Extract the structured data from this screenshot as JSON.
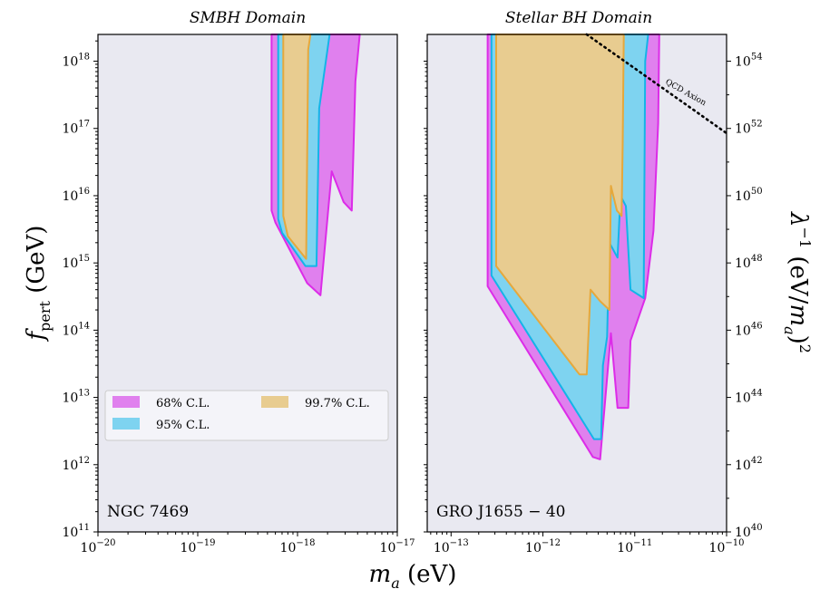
{
  "chart_data": [
    {
      "type": "area",
      "title": "SMBH Domain",
      "xlabel": "m_a (eV)",
      "ylabel": "f_pert (GeV)",
      "xscale": "log",
      "yscale": "log",
      "xlim": [
        1e-20,
        1e-17
      ],
      "ylim": [
        100000000000.0,
        2.5e+18
      ],
      "x_ticks": [
        "10^-20",
        "10^-19",
        "10^-18",
        "10^-17"
      ],
      "y_ticks": [
        "10^11",
        "10^12",
        "10^13",
        "10^14",
        "10^15",
        "10^16",
        "10^17",
        "10^18"
      ],
      "source_label": "NGC 7469",
      "legend": {
        "position": "lower-left",
        "entries": [
          "68% C.L.",
          "95% C.L.",
          "99.7% C.L."
        ]
      },
      "series": [
        {
          "name": "68% C.L.",
          "color": "#e080ee",
          "edge": "#dc2ce8",
          "polygon": [
            [
              5.5e-19,
              2.5e+18
            ],
            [
              4.2e-18,
              2.5e+18
            ],
            [
              3.8e-18,
              5e+17
            ],
            [
              3.5e-18,
              6000000000000000.0
            ],
            [
              2.9e-18,
              8000000000000000.0
            ],
            [
              2.2e-18,
              2.3e+16
            ],
            [
              1.7e-18,
              330000000000000.0
            ],
            [
              1.25e-18,
              500000000000000.0
            ],
            [
              6e-19,
              4000000000000000.0
            ],
            [
              5.5e-19,
              6000000000000000.0
            ]
          ]
        },
        {
          "name": "95% C.L.",
          "color": "#7ed3f0",
          "edge": "#14b4e8",
          "polygon": [
            [
              6.4e-19,
              2.5e+18
            ],
            [
              2.1e-18,
              2.5e+18
            ],
            [
              1.65e-18,
              2e+17
            ],
            [
              1.55e-18,
              900000000000000.0
            ],
            [
              1.2e-18,
              900000000000000.0
            ],
            [
              7e-19,
              2800000000000000.0
            ],
            [
              6.4e-19,
              4500000000000000.0
            ]
          ]
        },
        {
          "name": "99.7% C.L.",
          "color": "#e8cc90",
          "edge": "#e6a83c",
          "polygon": [
            [
              7.2e-19,
              2.5e+18
            ],
            [
              1.35e-18,
              2.5e+18
            ],
            [
              1.28e-18,
              1.5e+18
            ],
            [
              1.22e-18,
              1150000000000000.0
            ],
            [
              8e-19,
              2500000000000000.0
            ],
            [
              7.2e-19,
              5000000000000000.0
            ]
          ]
        }
      ]
    },
    {
      "type": "area",
      "title": "Stellar BH Domain",
      "xlabel": "m_a (eV)",
      "ylabel_right": "λ^-1 (eV/m_a)^2",
      "xscale": "log",
      "yscale": "log",
      "xlim": [
        5.5e-14,
        1e-10
      ],
      "ylim": [
        100000000000.0,
        2.5e+18
      ],
      "x_ticks": [
        "10^-13",
        "10^-12",
        "10^-11",
        "10^-10"
      ],
      "right_ticks": [
        "10^40",
        "10^42",
        "10^44",
        "10^46",
        "10^48",
        "10^50",
        "10^52",
        "10^54"
      ],
      "source_label": "GRO J1655 − 40",
      "annotation": "QCD Axion",
      "qcd_axion_line": {
        "style": "dotted",
        "points": [
          [
            3e-12,
            2.5e+18
          ],
          [
            1e-10,
            8.5e+16
          ]
        ]
      },
      "series": [
        {
          "name": "68% C.L.",
          "color": "#e080ee",
          "edge": "#dc2ce8",
          "polygon": [
            [
              2.5e-13,
              2.5e+18
            ],
            [
              1.85e-11,
              2.5e+18
            ],
            [
              1.8e-11,
              1.2e+17
            ],
            [
              1.6e-11,
              3000000000000000.0
            ],
            [
              1.3e-11,
              300000000000000.0
            ],
            [
              9e-12,
              70000000000000.0
            ],
            [
              8.5e-12,
              7000000000000.0
            ],
            [
              6.5e-12,
              7000000000000.0
            ],
            [
              5.5e-12,
              90000000000000.0
            ],
            [
              4.2e-12,
              1200000000000.0
            ],
            [
              3.5e-12,
              1300000000000.0
            ],
            [
              2.5e-13,
              450000000000000.0
            ]
          ]
        },
        {
          "name": "95% C.L.",
          "color": "#7ed3f0",
          "edge": "#14b4e8",
          "polygon": [
            [
              2.75e-13,
              2.5e+18
            ],
            [
              1.4e-11,
              2.5e+18
            ],
            [
              1.3e-11,
              1e+18
            ],
            [
              1.25e-11,
              300000000000000.0
            ],
            [
              9e-12,
              400000000000000.0
            ],
            [
              8e-12,
              7000000000000000.0
            ],
            [
              7e-12,
              1e+16
            ],
            [
              6.5e-12,
              1200000000000000.0
            ],
            [
              5.3e-12,
              2000000000000000.0
            ],
            [
              5e-12,
              80000000000000.0
            ],
            [
              4.5e-12,
              30000000000000.0
            ],
            [
              4.3e-12,
              2400000000000.0
            ],
            [
              3.6e-12,
              2400000000000.0
            ],
            [
              2.75e-13,
              650000000000000.0
            ]
          ]
        },
        {
          "name": "99.7% C.L.",
          "color": "#e8cc90",
          "edge": "#e6a83c",
          "polygon": [
            [
              3.1e-13,
              2.5e+18
            ],
            [
              7.6e-12,
              2.5e+18
            ],
            [
              7.4e-12,
              6e+16
            ],
            [
              7.2e-12,
              5000000000000000.0
            ],
            [
              6.4e-12,
              6000000000000000.0
            ],
            [
              5.5e-12,
              1.4e+16
            ],
            [
              5.3e-12,
              200000000000000.0
            ],
            [
              4.2e-12,
              270000000000000.0
            ],
            [
              3.3e-12,
              400000000000000.0
            ],
            [
              3e-12,
              22000000000000.0
            ],
            [
              2.5e-12,
              22000000000000.0
            ],
            [
              3.1e-13,
              900000000000000.0
            ]
          ]
        }
      ]
    }
  ]
}
